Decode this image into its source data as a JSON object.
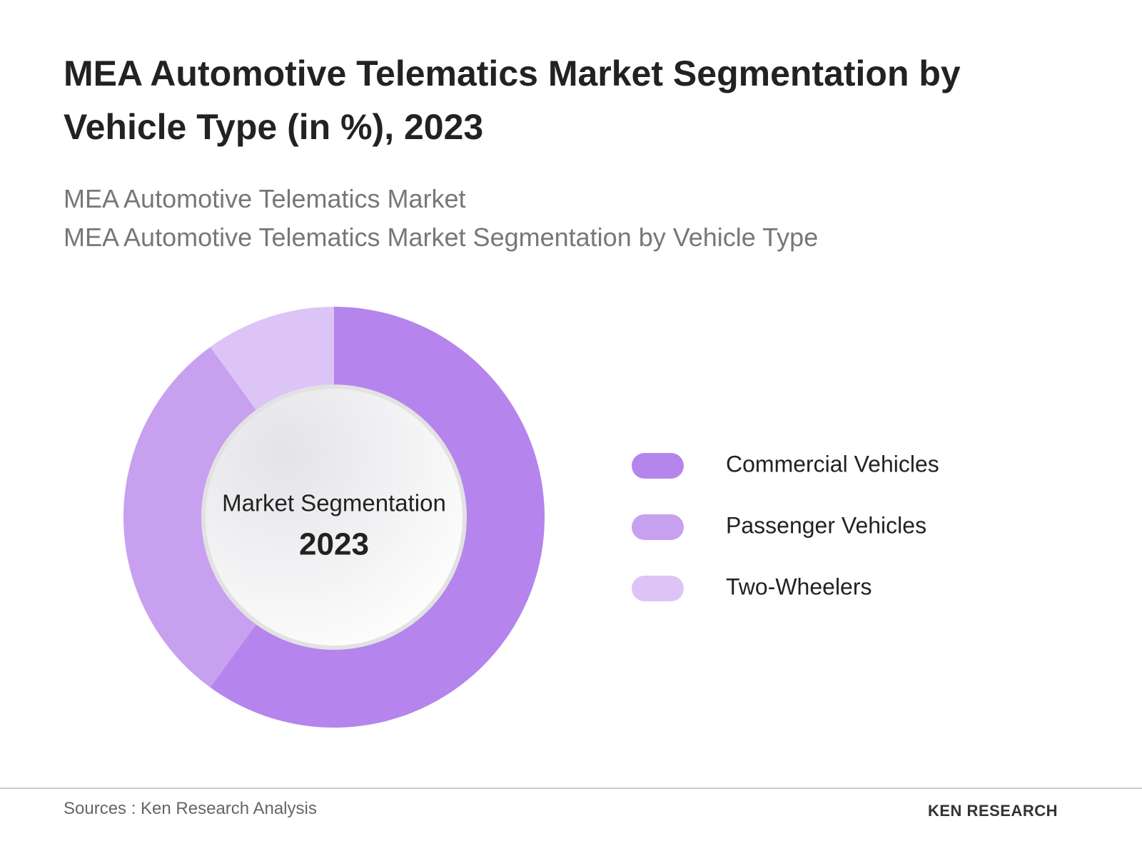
{
  "chart_data": {
    "type": "donut",
    "title": "MEA Automotive Telematics Market Segmentation by Vehicle Type (in %), 2023",
    "subtitles": [
      "MEA Automotive Telematics Market",
      "MEA Automotive Telematics Market Segmentation by Vehicle Type"
    ],
    "center_label": "Market Segmentation",
    "center_year": "2023",
    "categories": [
      "Commercial Vehicles",
      "Passenger Vehicles",
      "Two-Wheelers"
    ],
    "values": [
      60,
      30,
      10
    ],
    "colors": [
      "#b584ec",
      "#c8a0f0",
      "#dcc4f7"
    ],
    "legend": "right",
    "source": "Sources : Ken Research Analysis",
    "logo": "KEN RESEARCH"
  }
}
